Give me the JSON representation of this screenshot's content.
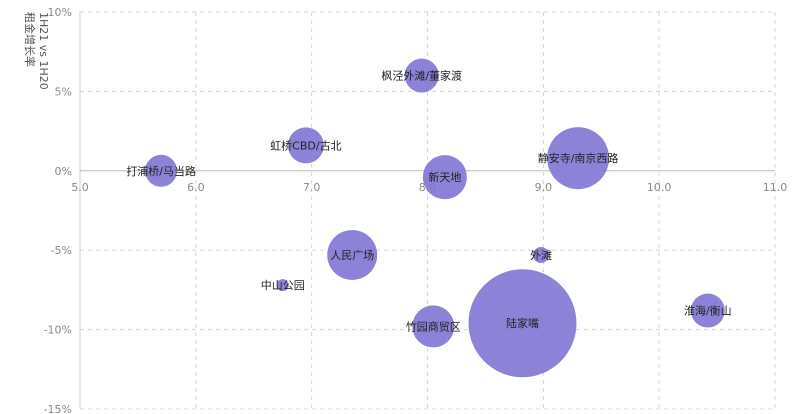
{
  "chart_data": {
    "type": "scatter",
    "subtype": "bubble",
    "ylabel_line1": "1H21 vs 1H20",
    "ylabel_line2": "租金增长率",
    "xlim": [
      5.0,
      11.0
    ],
    "ylim": [
      -15,
      10
    ],
    "x_ticks": [
      5.0,
      6.0,
      7.0,
      8.0,
      9.0,
      10.0,
      11.0
    ],
    "x_tick_labels": [
      "5.0",
      "6.0",
      "7.0",
      "8.0",
      "9.0",
      "10.0",
      "11.0"
    ],
    "y_ticks": [
      10,
      5,
      0,
      -5,
      -10,
      -15
    ],
    "y_tick_labels": [
      "10%",
      "5%",
      "0%",
      "-5%",
      "-10%",
      "-15%"
    ],
    "grid": true,
    "bubble_color": "#8278d6",
    "points": [
      {
        "label": "枫泾外滩/董家渡",
        "x": 7.95,
        "y": 6.0,
        "size": 17
      },
      {
        "label": "虹桥CBD/古北",
        "x": 6.95,
        "y": 1.6,
        "size": 18
      },
      {
        "label": "打浦桥/马当路",
        "x": 5.7,
        "y": 0.0,
        "size": 16
      },
      {
        "label": "新天地",
        "x": 8.15,
        "y": -0.4,
        "size": 22
      },
      {
        "label": "静安寺/南京西路",
        "x": 9.3,
        "y": 0.8,
        "size": 31
      },
      {
        "label": "人民广场",
        "x": 7.35,
        "y": -5.3,
        "size": 25
      },
      {
        "label": "外滩",
        "x": 8.98,
        "y": -5.3,
        "size": 8
      },
      {
        "label": "中山公园",
        "x": 6.75,
        "y": -7.2,
        "size": 6
      },
      {
        "label": "竹园商贸区",
        "x": 8.05,
        "y": -9.8,
        "size": 21
      },
      {
        "label": "陆家嘴",
        "x": 8.82,
        "y": -9.6,
        "size": 54
      },
      {
        "label": "淮海/衡山",
        "x": 10.42,
        "y": -8.8,
        "size": 17
      }
    ]
  }
}
